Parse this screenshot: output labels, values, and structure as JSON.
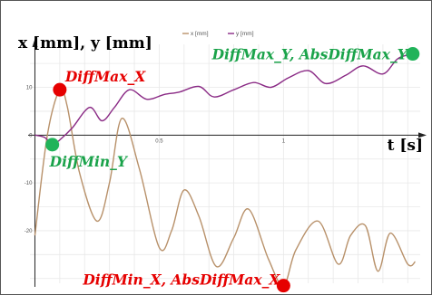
{
  "chart_data": {
    "type": "line",
    "title": "",
    "ylabel": "x [mm], y [mm]",
    "xlabel": "t [s]",
    "xlim": [
      -0.02,
      1.55
    ],
    "ylim": [
      -31,
      19
    ],
    "x_ticks": [
      0.5,
      1
    ],
    "x_tick_labels": [
      "0.5",
      "1"
    ],
    "y_ticks": [
      10,
      0,
      -10,
      -20
    ],
    "y_tick_labels": [
      "10",
      "0",
      "-10",
      "-20"
    ],
    "grid": true,
    "legend": "top-center",
    "series": [
      {
        "name": "x [mm]",
        "color": "#b8916a",
        "x": [
          0.0,
          0.05,
          0.1,
          0.13,
          0.18,
          0.25,
          0.3,
          0.35,
          0.42,
          0.5,
          0.55,
          0.6,
          0.66,
          0.73,
          0.8,
          0.86,
          0.94,
          1.0,
          1.05,
          1.14,
          1.22,
          1.27,
          1.33,
          1.38,
          1.43,
          1.5,
          1.53
        ],
        "values": [
          -21.0,
          0.0,
          9.5,
          6.0,
          -8.0,
          -18.0,
          -10.0,
          3.5,
          -7.0,
          -23.5,
          -20.0,
          -11.5,
          -17.0,
          -27.5,
          -21.5,
          -15.5,
          -26.0,
          -31.5,
          -24.0,
          -18.0,
          -27.0,
          -21.0,
          -19.0,
          -28.5,
          -20.5,
          -27.0,
          -26.5
        ]
      },
      {
        "name": "y [mm]",
        "color": "#8a2a85",
        "x": [
          0.0,
          0.04,
          0.07,
          0.1,
          0.15,
          0.22,
          0.27,
          0.32,
          0.38,
          0.45,
          0.52,
          0.58,
          0.66,
          0.72,
          0.8,
          0.88,
          0.95,
          1.02,
          1.1,
          1.17,
          1.25,
          1.32,
          1.4,
          1.46,
          1.52
        ],
        "values": [
          0.0,
          -0.5,
          -2.0,
          -1.0,
          1.5,
          5.8,
          3.0,
          5.8,
          9.5,
          7.5,
          8.5,
          9.0,
          10.2,
          8.0,
          9.5,
          11.0,
          10.0,
          12.0,
          13.5,
          10.8,
          12.5,
          14.5,
          12.8,
          16.0,
          17.0
        ]
      }
    ],
    "annotations": [
      {
        "text": "DiffMax_X",
        "x": 0.1,
        "y": 9.5,
        "color": "#e60000",
        "marker_color": "#e60000"
      },
      {
        "text": "DiffMin_Y",
        "x": 0.07,
        "y": -2.0,
        "color": "#1aa34a",
        "marker_color": "#21b35a"
      },
      {
        "text": "DiffMax_Y, AbsDiffMax_Y",
        "x": 1.52,
        "y": 17.0,
        "color": "#1aa34a",
        "marker_color": "#21b35a"
      },
      {
        "text": "DiffMin_X, AbsDiffMax_X",
        "x": 1.0,
        "y": -31.5,
        "color": "#e60000",
        "marker_color": "#e60000"
      }
    ]
  }
}
